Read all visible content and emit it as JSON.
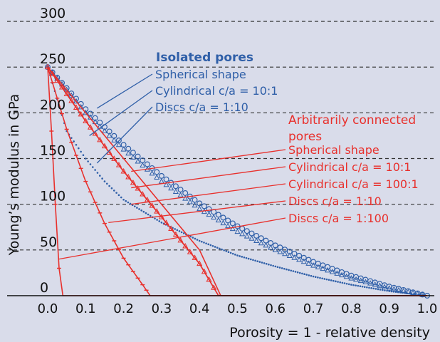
{
  "chart_data": {
    "type": "line",
    "title": "",
    "xlabel": "Porosity  = 1 - relative density",
    "ylabel": "Young’s modulus in GPa",
    "xlim": [
      0,
      1
    ],
    "ylim": [
      0,
      300
    ],
    "x_ticks": [
      "0.0",
      "0.1",
      "0.2",
      "0.3",
      "0.4",
      "0.5",
      "0.6",
      "0.7",
      "0.8",
      "0.9",
      "1.0"
    ],
    "y_ticks": [
      "0",
      "50",
      "100",
      "150",
      "200",
      "250",
      "300"
    ],
    "grid": "horizontal dashed",
    "colors": {
      "background": "#d9dcea",
      "isolated": "#2f5fa8",
      "connected": "#e8302c",
      "grid": "#333333"
    },
    "groups": [
      {
        "heading": [
          "Isolated pores"
        ],
        "color": "#2f5fa8",
        "series": [
          {
            "name": "Spherical shape",
            "marker": "circle",
            "x": [
              0,
              0.1,
              0.2,
              0.3,
              0.4,
              0.5,
              0.6,
              0.7,
              0.8,
              0.9,
              1.0
            ],
            "y": [
              250,
              204,
              165,
              131,
              101,
              76,
              55,
              37,
              22,
              10,
              0
            ]
          },
          {
            "name": "Cylindrical c/a = 10:1",
            "marker": "triangle",
            "x": [
              0,
              0.1,
              0.2,
              0.3,
              0.4,
              0.5,
              0.6,
              0.7,
              0.8,
              0.9,
              1.0
            ],
            "y": [
              250,
              200,
              160,
              125,
              95,
              70,
              50,
              33,
              19,
              8,
              0
            ]
          },
          {
            "name": "Discs c/a = 1:10",
            "marker": "dot",
            "x": [
              0,
              0.05,
              0.1,
              0.15,
              0.2,
              0.3,
              0.4,
              0.5,
              0.6,
              0.7,
              0.8,
              0.9,
              1.0
            ],
            "y": [
              250,
              180,
              150,
              125,
              105,
              80,
              60,
              44,
              32,
              21,
              12,
              5,
              0
            ]
          }
        ]
      },
      {
        "heading": [
          "Arbitrarily connected",
          "pores"
        ],
        "color": "#e8302c",
        "series": [
          {
            "name": "Spherical shape",
            "marker": "none",
            "x": [
              0,
              0.1,
              0.2,
              0.3,
              0.4,
              0.456,
              0.5,
              1.0
            ],
            "y": [
              250,
              200,
              150,
              100,
              50,
              0,
              0,
              0
            ]
          },
          {
            "name": "Cylindrical c/a = 10:1",
            "marker": "triangle",
            "x": [
              0,
              0.1,
              0.2,
              0.3,
              0.4,
              0.45,
              1.0
            ],
            "y": [
              250,
              191,
              136,
              86,
              35,
              0,
              0
            ]
          },
          {
            "name": "Cylindrical c/a = 100:1",
            "marker": "none",
            "x": [
              0,
              0.1,
              0.2,
              0.3,
              0.4,
              0.45,
              1.0
            ],
            "y": [
              250,
              191,
              136,
              86,
              35,
              0,
              0
            ]
          },
          {
            "name": "Discs c/a = 1:10",
            "marker": "tick",
            "x": [
              0,
              0.05,
              0.1,
              0.15,
              0.2,
              0.25,
              0.27,
              1.0
            ],
            "y": [
              250,
              182,
              125,
              79,
              41,
              12,
              0,
              0
            ]
          },
          {
            "name": "Discs c/a = 1:100",
            "marker": "tick",
            "x": [
              0,
              0.01,
              0.02,
              0.03,
              0.04,
              1.0
            ],
            "y": [
              250,
              180,
              100,
              30,
              0,
              0
            ]
          }
        ]
      }
    ]
  }
}
